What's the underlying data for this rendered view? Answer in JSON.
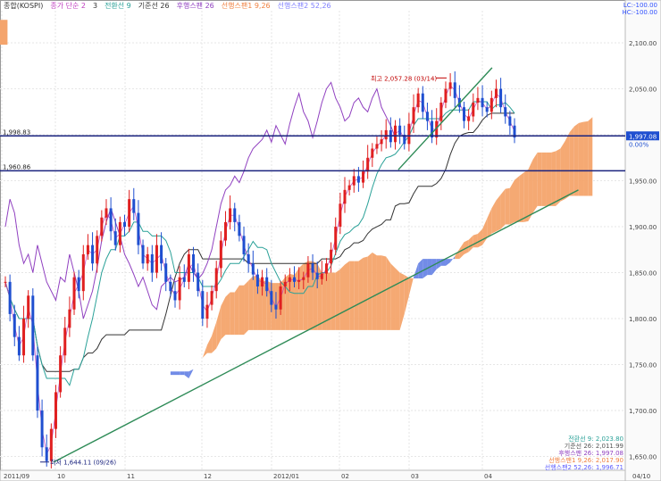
{
  "header": {
    "legend_items": [
      {
        "label": "종합(KOSPI)",
        "color": "#333333"
      },
      {
        "label": "종가 단순 2",
        "color": "#c040c0"
      },
      {
        "label": "3",
        "color": "#333333"
      },
      {
        "label": "전환선 9",
        "color": "#2aa198"
      },
      {
        "label": "기준선 26",
        "color": "#333333"
      },
      {
        "label": "후행스팬 26",
        "color": "#9040c0"
      },
      {
        "label": "선행스팬1 9,26",
        "color": "#f08040"
      },
      {
        "label": "선행스팬2 52,26",
        "color": "#8080ff"
      }
    ],
    "lc": "LC:-100.00",
    "hc": "HC:-100.00"
  },
  "chart_data": {
    "type": "candlestick",
    "x_ticks": [
      "2011/09",
      "10",
      "11",
      "12",
      "2012/01",
      "02",
      "03",
      "04",
      "04/10"
    ],
    "y_ticks": [
      2100,
      2050,
      2000,
      1950,
      1900,
      1850,
      1800,
      1750,
      1700,
      1650
    ],
    "ylim": [
      1635,
      2135
    ],
    "hlines": [
      {
        "value": 1998.83,
        "label": "1,998.83",
        "color": "#1a237e"
      },
      {
        "value": 1960.86,
        "label": "1,960.86",
        "color": "#1a237e"
      }
    ],
    "annotations": {
      "high": "최고 2,057.28 (03/14)",
      "low": "최저 1,644.11 (09/26)",
      "current_price": "1,997.08",
      "pct": "0.00%"
    },
    "trendlines": [
      {
        "from": [
          0.086,
          1644
        ],
        "to": [
          0.925,
          1940
        ]
      },
      {
        "from": [
          0.637,
          1962
        ],
        "to": [
          0.787,
          2073
        ]
      }
    ],
    "closes": [
      1840,
      1805,
      1780,
      1760,
      1800,
      1825,
      1760,
      1700,
      1660,
      1645,
      1680,
      1720,
      1760,
      1790,
      1810,
      1845,
      1830,
      1870,
      1880,
      1860,
      1890,
      1910,
      1920,
      1895,
      1880,
      1905,
      1900,
      1930,
      1915,
      1880,
      1860,
      1870,
      1850,
      1880,
      1860,
      1840,
      1830,
      1820,
      1845,
      1840,
      1870,
      1850,
      1830,
      1800,
      1815,
      1830,
      1855,
      1885,
      1905,
      1920,
      1905,
      1890,
      1870,
      1860,
      1848,
      1835,
      1845,
      1830,
      1815,
      1810,
      1835,
      1840,
      1845,
      1840,
      1842,
      1845,
      1860,
      1850,
      1843,
      1849,
      1860,
      1875,
      1900,
      1925,
      1940,
      1945,
      1955,
      1948,
      1960,
      1975,
      1985,
      1990,
      1995,
      2005,
      1992,
      2010,
      2000,
      1990,
      2012,
      2030,
      2045,
      2025,
      2015,
      1997,
      2015,
      2035,
      2050,
      2057,
      2040,
      2030,
      2015,
      2020,
      2035,
      2040,
      2030,
      2025,
      2040,
      2050,
      2030,
      2020,
      2010,
      1997
    ],
    "footer_values": [
      {
        "label": "전환선 9: 2,023.80",
        "color": "#2aa198"
      },
      {
        "label": "기준선 26: 2,011.99",
        "color": "#555555"
      },
      {
        "label": "후행스팬 26: 1,997.08",
        "color": "#9040c0"
      },
      {
        "label": "선행스팬1 9,26: 2,017.90",
        "color": "#f08040"
      },
      {
        "label": "선행스팬2 52,26: 1,996.71",
        "color": "#6060ff"
      }
    ]
  }
}
